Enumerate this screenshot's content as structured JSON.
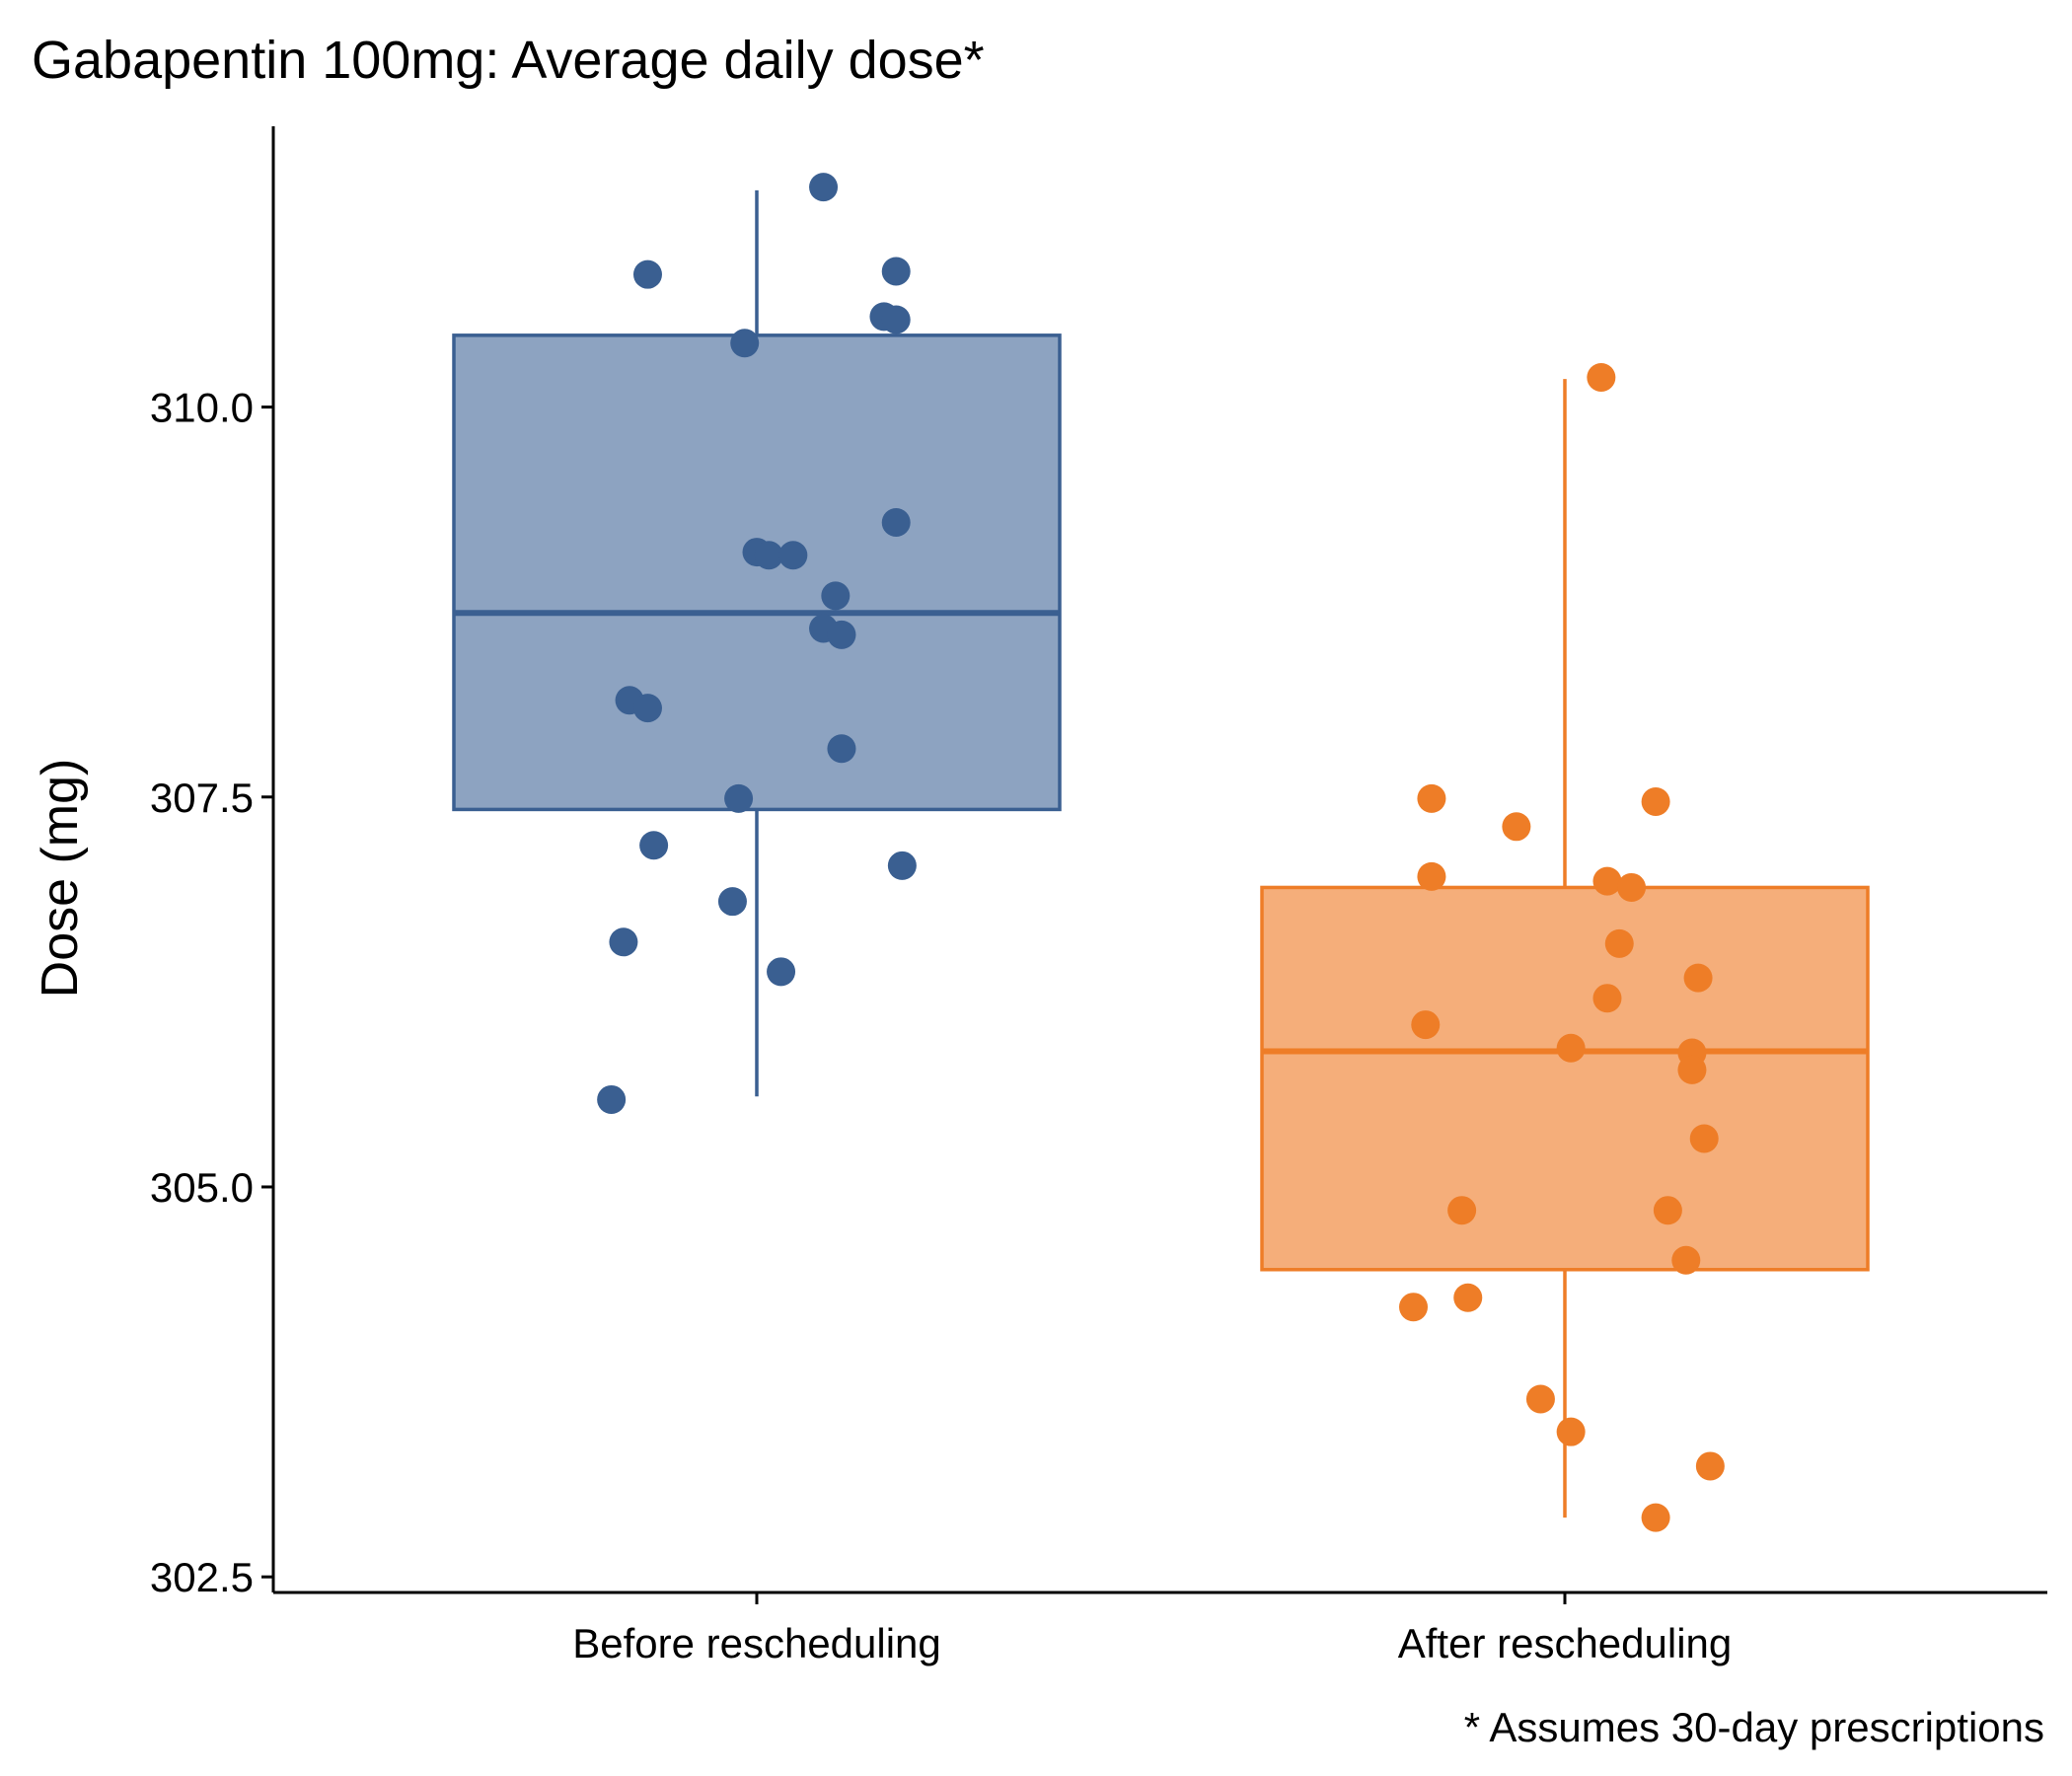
{
  "chart_data": {
    "type": "box",
    "title": "Gabapentin 100mg: Average daily dose*",
    "xlabel": "",
    "ylabel": "Dose (mg)",
    "caption": "* Assumes 30-day prescriptions",
    "ylim": [
      302.4,
      311.8
    ],
    "yticks": [
      302.5,
      305.0,
      307.5,
      310.0
    ],
    "ytick_labels": [
      "302.5",
      "305.0",
      "307.5",
      "310.0"
    ],
    "categories": [
      "Before rescheduling",
      "After rescheduling"
    ],
    "grid": false,
    "legend": "none",
    "colors": {
      "before": "#3A5F91",
      "before_fill": "#8DA3C1",
      "after": "#EE7D27",
      "after_fill": "#F5AE7A"
    },
    "series": [
      {
        "group": "Before rescheduling",
        "box": {
          "q1": 307.42,
          "median": 308.68,
          "q3": 310.46,
          "whisker_low": 305.58,
          "whisker_high": 311.39
        },
        "points": [
          {
            "x": -0.18,
            "y": 310.85
          },
          {
            "x": 0.11,
            "y": 311.41
          },
          {
            "x": 0.23,
            "y": 310.87
          },
          {
            "x": 0.21,
            "y": 310.58
          },
          {
            "x": 0.23,
            "y": 310.56
          },
          {
            "x": -0.02,
            "y": 310.41
          },
          {
            "x": 0.23,
            "y": 309.26
          },
          {
            "x": 0.0,
            "y": 309.07
          },
          {
            "x": 0.02,
            "y": 309.05
          },
          {
            "x": 0.06,
            "y": 309.05
          },
          {
            "x": 0.13,
            "y": 308.79
          },
          {
            "x": 0.11,
            "y": 308.58
          },
          {
            "x": 0.14,
            "y": 308.54
          },
          {
            "x": -0.21,
            "y": 308.12
          },
          {
            "x": -0.18,
            "y": 308.07
          },
          {
            "x": 0.14,
            "y": 307.81
          },
          {
            "x": -0.03,
            "y": 307.49
          },
          {
            "x": -0.17,
            "y": 307.19
          },
          {
            "x": 0.24,
            "y": 307.06
          },
          {
            "x": -0.04,
            "y": 306.83
          },
          {
            "x": -0.22,
            "y": 306.57
          },
          {
            "x": 0.04,
            "y": 306.38
          },
          {
            "x": -0.24,
            "y": 305.56
          }
        ]
      },
      {
        "group": "After rescheduling",
        "box": {
          "q1": 304.47,
          "median": 305.87,
          "q3": 306.92,
          "whisker_low": 302.88,
          "whisker_high": 310.18
        },
        "points": [
          {
            "x": 0.06,
            "y": 310.19
          },
          {
            "x": -0.22,
            "y": 307.49
          },
          {
            "x": 0.15,
            "y": 307.47
          },
          {
            "x": -0.08,
            "y": 307.31
          },
          {
            "x": -0.22,
            "y": 306.99
          },
          {
            "x": 0.07,
            "y": 306.96
          },
          {
            "x": 0.11,
            "y": 306.92
          },
          {
            "x": 0.09,
            "y": 306.56
          },
          {
            "x": 0.22,
            "y": 306.34
          },
          {
            "x": 0.07,
            "y": 306.21
          },
          {
            "x": -0.23,
            "y": 306.04
          },
          {
            "x": 0.01,
            "y": 305.89
          },
          {
            "x": 0.21,
            "y": 305.86
          },
          {
            "x": 0.21,
            "y": 305.75
          },
          {
            "x": 0.23,
            "y": 305.31
          },
          {
            "x": -0.17,
            "y": 304.85
          },
          {
            "x": 0.17,
            "y": 304.85
          },
          {
            "x": 0.2,
            "y": 304.53
          },
          {
            "x": -0.16,
            "y": 304.29
          },
          {
            "x": -0.25,
            "y": 304.23
          },
          {
            "x": -0.04,
            "y": 303.64
          },
          {
            "x": 0.01,
            "y": 303.43
          },
          {
            "x": 0.24,
            "y": 303.21
          },
          {
            "x": 0.15,
            "y": 302.88
          }
        ]
      }
    ]
  }
}
